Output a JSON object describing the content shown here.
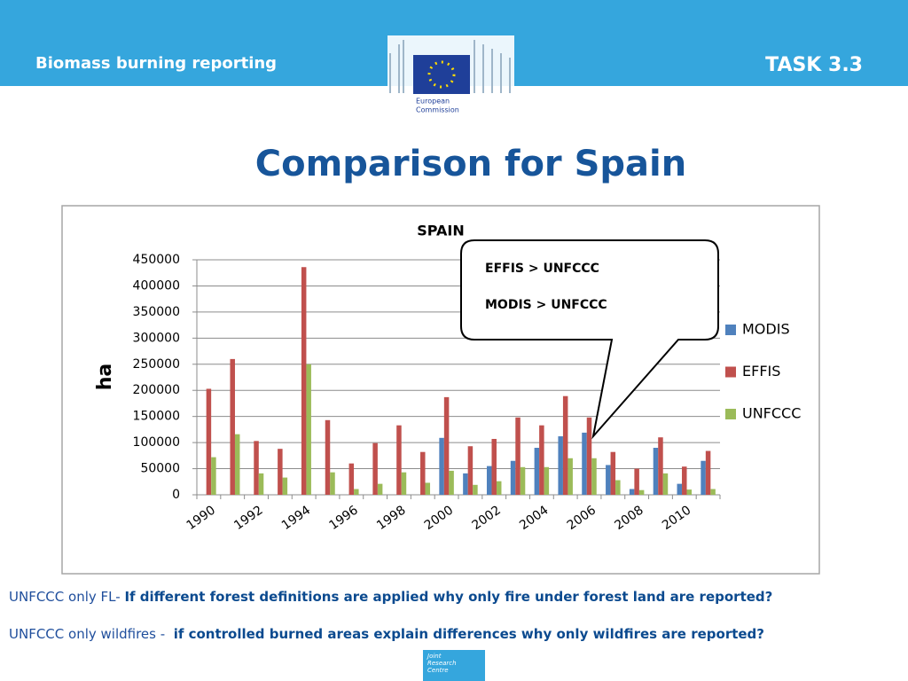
{
  "header": {
    "left": "Biomass burning reporting",
    "right": "TASK 3.3",
    "logo_line1": "European",
    "logo_line2": "Commission"
  },
  "slide_title": "Comparison for Spain",
  "chart_data": {
    "type": "bar",
    "title": "SPAIN",
    "y_label": "ha",
    "categories": [
      "1990",
      null,
      "1992",
      null,
      "1994",
      null,
      "1996",
      null,
      "1998",
      null,
      "2000",
      null,
      "2002",
      null,
      "2004",
      null,
      "2006",
      null,
      "2008",
      null,
      "2010",
      null
    ],
    "series": [
      {
        "name": "MODIS",
        "color": "#4f81bd",
        "values": [
          null,
          null,
          null,
          null,
          null,
          null,
          null,
          null,
          null,
          null,
          109000,
          41000,
          55000,
          65000,
          90000,
          112000,
          119000,
          57000,
          11000,
          90000,
          21000,
          65000
        ]
      },
      {
        "name": "EFFIS",
        "color": "#c0504d",
        "values": [
          203000,
          260000,
          103000,
          88000,
          436000,
          143000,
          60000,
          99000,
          133000,
          82000,
          187000,
          93000,
          107000,
          148000,
          133000,
          189000,
          148000,
          82000,
          50000,
          110000,
          54000,
          84000
        ]
      },
      {
        "name": "UNFCCC",
        "color": "#9bbb59",
        "values": [
          72000,
          116000,
          41000,
          33000,
          250000,
          43000,
          11000,
          21000,
          43000,
          23000,
          46000,
          19000,
          26000,
          53000,
          53000,
          70000,
          70000,
          28000,
          9000,
          41000,
          10000,
          11000
        ]
      }
    ],
    "ylim": [
      0,
      450000
    ],
    "yticks": [
      0,
      50000,
      100000,
      150000,
      200000,
      250000,
      300000,
      350000,
      400000,
      450000
    ],
    "grid": true,
    "legend": "right"
  },
  "callout": [
    "EFFIS > UNFCCC",
    "MODIS > UNFCCC"
  ],
  "notes": [
    {
      "lead": "UNFCCC only FL-",
      "question": "If different forest definitions are applied why only fire under forest land are reported?"
    },
    {
      "lead": "UNFCCC only wildfires -",
      "question": "if controlled burned areas explain differences why only wildfires are reported?"
    }
  ],
  "footer": {
    "logo": [
      "Joint",
      "Research",
      "Centre"
    ]
  }
}
